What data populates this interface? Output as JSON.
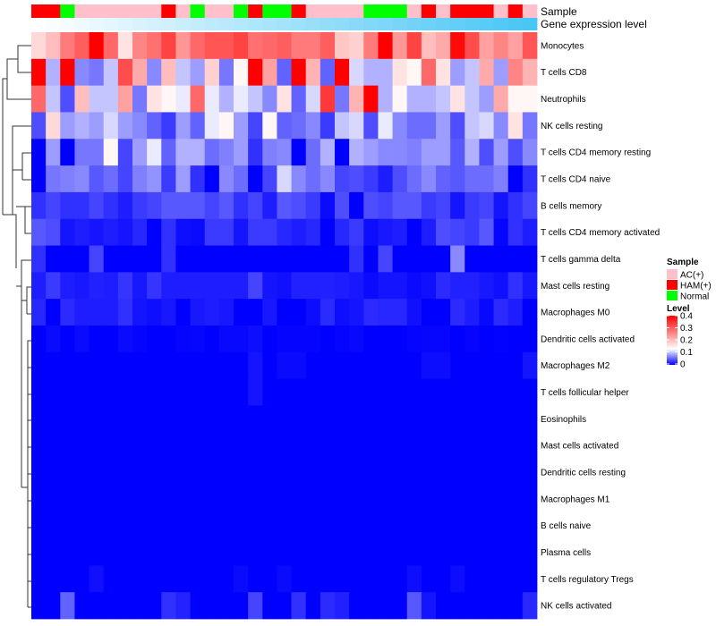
{
  "chart_data": {
    "type": "heatmap",
    "title": "",
    "rows": [
      "Monocytes",
      "T cells CD8",
      "Neutrophils",
      "NK cells resting",
      "T cells CD4 memory resting",
      "T cells CD4 naive",
      "B cells memory",
      "T cells CD4 memory activated",
      "T cells gamma delta",
      "Mast cells resting",
      "Macrophages M0",
      "Dendritic cells activated",
      "Macrophages M2",
      "T cells follicular helper",
      "Eosinophils",
      "Mast cells activated",
      "Dendritic cells resting",
      "Macrophages M1",
      "B cells naive",
      "Plasma cells",
      "T cells regulatory  Tregs",
      "NK cells activated"
    ],
    "n_columns": 35,
    "annotations": {
      "sample_label": "Sample",
      "gene_label": "Gene expression level",
      "sample": [
        "HAM(+)",
        "HAM(+)",
        "Normal",
        "AC(+)",
        "AC(+)",
        "AC(+)",
        "AC(+)",
        "AC(+)",
        "AC(+)",
        "HAM(+)",
        "AC(+)",
        "Normal",
        "AC(+)",
        "AC(+)",
        "Normal",
        "HAM(+)",
        "Normal",
        "Normal",
        "HAM(+)",
        "AC(+)",
        "AC(+)",
        "AC(+)",
        "AC(+)",
        "Normal",
        "Normal",
        "Normal",
        "AC(+)",
        "HAM(+)",
        "AC(+)",
        "HAM(+)",
        "HAM(+)",
        "HAM(+)",
        "AC(+)",
        "HAM(+)",
        "AC(+)"
      ],
      "gene_expression_low_color": "#ffffff",
      "gene_expression_high_color": "#48c6f5"
    },
    "values": [
      [
        0.17,
        0.2,
        0.27,
        0.3,
        0.4,
        0.29,
        0.16,
        0.26,
        0.28,
        0.33,
        0.24,
        0.29,
        0.31,
        0.31,
        0.33,
        0.28,
        0.29,
        0.3,
        0.27,
        0.27,
        0.3,
        0.19,
        0.18,
        0.27,
        0.4,
        0.24,
        0.33,
        0.2,
        0.22,
        0.39,
        0.32,
        0.23,
        0.26,
        0.23,
        0.31
      ],
      [
        0.4,
        0.09,
        0.4,
        0.07,
        0.06,
        0.1,
        0.32,
        0.22,
        0.07,
        0.2,
        0.1,
        0.08,
        0.18,
        0.06,
        0.14,
        0.4,
        0.23,
        0.05,
        0.4,
        0.21,
        0.05,
        0.4,
        0.11,
        0.09,
        0.09,
        0.16,
        0.14,
        0.29,
        0.16,
        0.08,
        0.1,
        0.22,
        0.08,
        0.26,
        0.21
      ],
      [
        0.29,
        0.1,
        0.04,
        0.2,
        0.1,
        0.1,
        0.23,
        0.06,
        0.16,
        0.14,
        0.12,
        0.29,
        0.12,
        0.09,
        0.12,
        0.1,
        0.07,
        0.16,
        0.05,
        0.11,
        0.34,
        0.06,
        0.21,
        0.4,
        0.09,
        0.14,
        0.09,
        0.09,
        0.1,
        0.16,
        0.1,
        0.08,
        0.22,
        0.14,
        0.14
      ],
      [
        0.04,
        0.17,
        0.08,
        0.09,
        0.08,
        0.11,
        0.08,
        0.07,
        0.05,
        0.03,
        0.08,
        0.05,
        0.12,
        0.14,
        0.08,
        0.035,
        0.14,
        0.05,
        0.055,
        0.07,
        0.03,
        0.1,
        0.11,
        0.04,
        0.12,
        0.07,
        0.055,
        0.055,
        0.08,
        0.04,
        0.1,
        0.11,
        0.07,
        0.16,
        0.06
      ],
      [
        0,
        0.08,
        0,
        0.06,
        0.06,
        0.14,
        0.035,
        0.08,
        0.12,
        0.05,
        0.09,
        0.09,
        0.055,
        0.065,
        0.08,
        0.025,
        0.065,
        0.07,
        0,
        0.055,
        0.09,
        0,
        0.09,
        0.08,
        0.07,
        0.07,
        0.065,
        0.08,
        0.08,
        0.045,
        0.09,
        0.04,
        0.08,
        0.04,
        0.07
      ],
      [
        0,
        0.06,
        0.065,
        0.07,
        0.045,
        0.055,
        0.035,
        0.065,
        0.075,
        0.03,
        0.08,
        0.025,
        0,
        0.07,
        0.055,
        0,
        0.035,
        0.11,
        0.07,
        0.055,
        0.07,
        0.035,
        0.04,
        0.03,
        0.015,
        0.04,
        0.055,
        0.07,
        0.05,
        0.045,
        0.055,
        0.055,
        0.065,
        0,
        0.025
      ],
      [
        0.025,
        0.035,
        0.025,
        0.025,
        0.035,
        0.025,
        0.015,
        0.03,
        0.035,
        0.045,
        0.045,
        0.045,
        0.035,
        0.045,
        0.025,
        0.035,
        0.015,
        0.045,
        0.04,
        0.03,
        0.005,
        0.04,
        0,
        0.04,
        0.035,
        0.045,
        0.045,
        0.03,
        0.035,
        0.01,
        0.03,
        0.035,
        0.01,
        0.025,
        0.035
      ],
      [
        0.045,
        0.04,
        0.01,
        0.015,
        0.01,
        0.015,
        0.01,
        0.02,
        0,
        0.025,
        0.007,
        0.005,
        0.03,
        0.03,
        0.01,
        0.03,
        0.03,
        0.02,
        0.015,
        0.02,
        0,
        0.02,
        0.03,
        0.007,
        0.012,
        0.015,
        0,
        0.015,
        0.04,
        0.035,
        0.03,
        0.045,
        0.003,
        0.025,
        0.015
      ],
      [
        0.025,
        0,
        0,
        0,
        0.035,
        0,
        0,
        0,
        0,
        0.025,
        0,
        0,
        0,
        0,
        0,
        0,
        0,
        0,
        0,
        0,
        0,
        0,
        0.025,
        0,
        0.035,
        0,
        0,
        0,
        0,
        0.07,
        0,
        0,
        0,
        0,
        0
      ],
      [
        0.015,
        0.03,
        0.015,
        0.012,
        0.017,
        0.015,
        0.027,
        0.012,
        0.027,
        0.015,
        0.015,
        0.015,
        0.015,
        0.015,
        0.015,
        0.035,
        0.01,
        0.008,
        0.017,
        0.017,
        0.017,
        0.015,
        0.012,
        0.005,
        0.01,
        0.01,
        0.005,
        0.008,
        0.022,
        0.017,
        0.017,
        0.012,
        0.008,
        0.025,
        0.012
      ],
      [
        0.02,
        0,
        0.022,
        0.015,
        0.015,
        0.015,
        0.025,
        0.01,
        0.007,
        0.012,
        0,
        0.012,
        0.015,
        0.012,
        0,
        0,
        0.012,
        0,
        0,
        0.006,
        0.022,
        0.007,
        0.01,
        0.022,
        0.02,
        0.02,
        0.008,
        0,
        0,
        0.022,
        0.015,
        0.004,
        0.022,
        0.015,
        0
      ],
      [
        0,
        0.005,
        0,
        0.005,
        0,
        0,
        0.005,
        0.002,
        0,
        0,
        0.002,
        0.003,
        0,
        0.004,
        0.004,
        0.007,
        0,
        0.002,
        0.002,
        0.002,
        0,
        0.002,
        0.004,
        0,
        0,
        0,
        0.002,
        0.003,
        0.003,
        0,
        0.002,
        0,
        0.001,
        0,
        0
      ],
      [
        0,
        0,
        0,
        0,
        0,
        0,
        0,
        0,
        0,
        0,
        0,
        0,
        0,
        0,
        0,
        0.01,
        0,
        0.005,
        0.005,
        0,
        0,
        0,
        0,
        0,
        0,
        0,
        0,
        0.006,
        0.006,
        0,
        0,
        0,
        0,
        0,
        0.01
      ],
      [
        0,
        0,
        0,
        0,
        0,
        0,
        0,
        0,
        0,
        0,
        0,
        0,
        0,
        0,
        0,
        0.01,
        0,
        0,
        0,
        0,
        0,
        0,
        0,
        0,
        0,
        0,
        0,
        0,
        0,
        0,
        0,
        0,
        0,
        0,
        0
      ],
      [
        0,
        0,
        0,
        0,
        0,
        0,
        0,
        0,
        0,
        0,
        0,
        0,
        0,
        0,
        0,
        0,
        0,
        0,
        0,
        0,
        0,
        0,
        0,
        0,
        0,
        0,
        0,
        0,
        0,
        0,
        0,
        0,
        0,
        0,
        0
      ],
      [
        0,
        0,
        0,
        0,
        0,
        0,
        0,
        0,
        0,
        0,
        0,
        0,
        0,
        0,
        0,
        0,
        0,
        0,
        0,
        0,
        0,
        0,
        0,
        0,
        0,
        0,
        0,
        0,
        0,
        0,
        0,
        0,
        0,
        0,
        0
      ],
      [
        0,
        0,
        0,
        0,
        0,
        0,
        0,
        0,
        0,
        0,
        0,
        0,
        0,
        0,
        0,
        0,
        0,
        0,
        0,
        0,
        0,
        0,
        0,
        0,
        0,
        0,
        0,
        0,
        0,
        0,
        0,
        0,
        0,
        0,
        0
      ],
      [
        0,
        0,
        0,
        0,
        0,
        0,
        0,
        0,
        0,
        0,
        0,
        0,
        0,
        0,
        0,
        0,
        0,
        0,
        0,
        0,
        0,
        0,
        0,
        0,
        0,
        0,
        0,
        0,
        0,
        0,
        0,
        0,
        0,
        0,
        0
      ],
      [
        0,
        0,
        0,
        0,
        0,
        0,
        0,
        0,
        0,
        0,
        0,
        0,
        0,
        0,
        0,
        0,
        0,
        0,
        0,
        0,
        0,
        0,
        0,
        0,
        0,
        0,
        0,
        0,
        0,
        0,
        0,
        0,
        0,
        0,
        0
      ],
      [
        0,
        0,
        0,
        0,
        0,
        0,
        0,
        0,
        0,
        0,
        0,
        0,
        0,
        0,
        0,
        0,
        0,
        0,
        0,
        0,
        0,
        0,
        0,
        0,
        0,
        0,
        0,
        0,
        0,
        0,
        0,
        0,
        0,
        0,
        0
      ],
      [
        0,
        0,
        0,
        0,
        0.008,
        0,
        0,
        0,
        0,
        0,
        0,
        0,
        0,
        0,
        0.005,
        0,
        0,
        0.005,
        0,
        0,
        0,
        0,
        0,
        0,
        0,
        0,
        0.007,
        0,
        0,
        0.006,
        0,
        0,
        0,
        0,
        0
      ],
      [
        0,
        0,
        0.05,
        0,
        0,
        0,
        0,
        0,
        0,
        0.025,
        0.018,
        0,
        0,
        0,
        0,
        0.035,
        0,
        0,
        0.025,
        0,
        0.022,
        0.017,
        0,
        0,
        0,
        0,
        0.045,
        0.01,
        0,
        0,
        0,
        0,
        0,
        0,
        0.02
      ]
    ],
    "legend": {
      "sample_title": "Sample",
      "sample_items": [
        {
          "label": "AC(+)",
          "color": "#ffc0cb"
        },
        {
          "label": "HAM(+)",
          "color": "#ff0000"
        },
        {
          "label": "Normal",
          "color": "#00ff00"
        }
      ],
      "level_title": "Level",
      "level_ticks": [
        "0.4",
        "0.3",
        "0.2",
        "0.1",
        "0"
      ],
      "level_range": [
        0,
        0.4
      ],
      "colors": {
        "low": "#0000ff",
        "mid": "#ffffff",
        "high": "#ff0000",
        "mid_value": 0.13
      },
      "placement": "right"
    }
  }
}
